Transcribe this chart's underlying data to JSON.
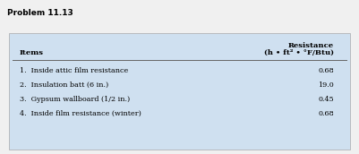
{
  "title": "Problem 11.13",
  "col1_header": "Items",
  "col2_header_line1": "Resistance",
  "col2_header_line2": "(h • ft² • °F/Btu)",
  "rows": [
    {
      "item": "1.  Inside attic film resistance",
      "value": "0.68"
    },
    {
      "item": "2.  Insulation batt (6 in.)",
      "value": "19.0"
    },
    {
      "item": "3.  Gypsum wallboard (1/2 in.)",
      "value": "0.45"
    },
    {
      "item": "4.  Inside film resistance (winter)",
      "value": "0.68"
    }
  ],
  "bg_color": "#cfe0f0",
  "outer_bg": "#f0f0f0",
  "title_fontsize": 6.5,
  "header_fontsize": 6.0,
  "row_fontsize": 5.8
}
